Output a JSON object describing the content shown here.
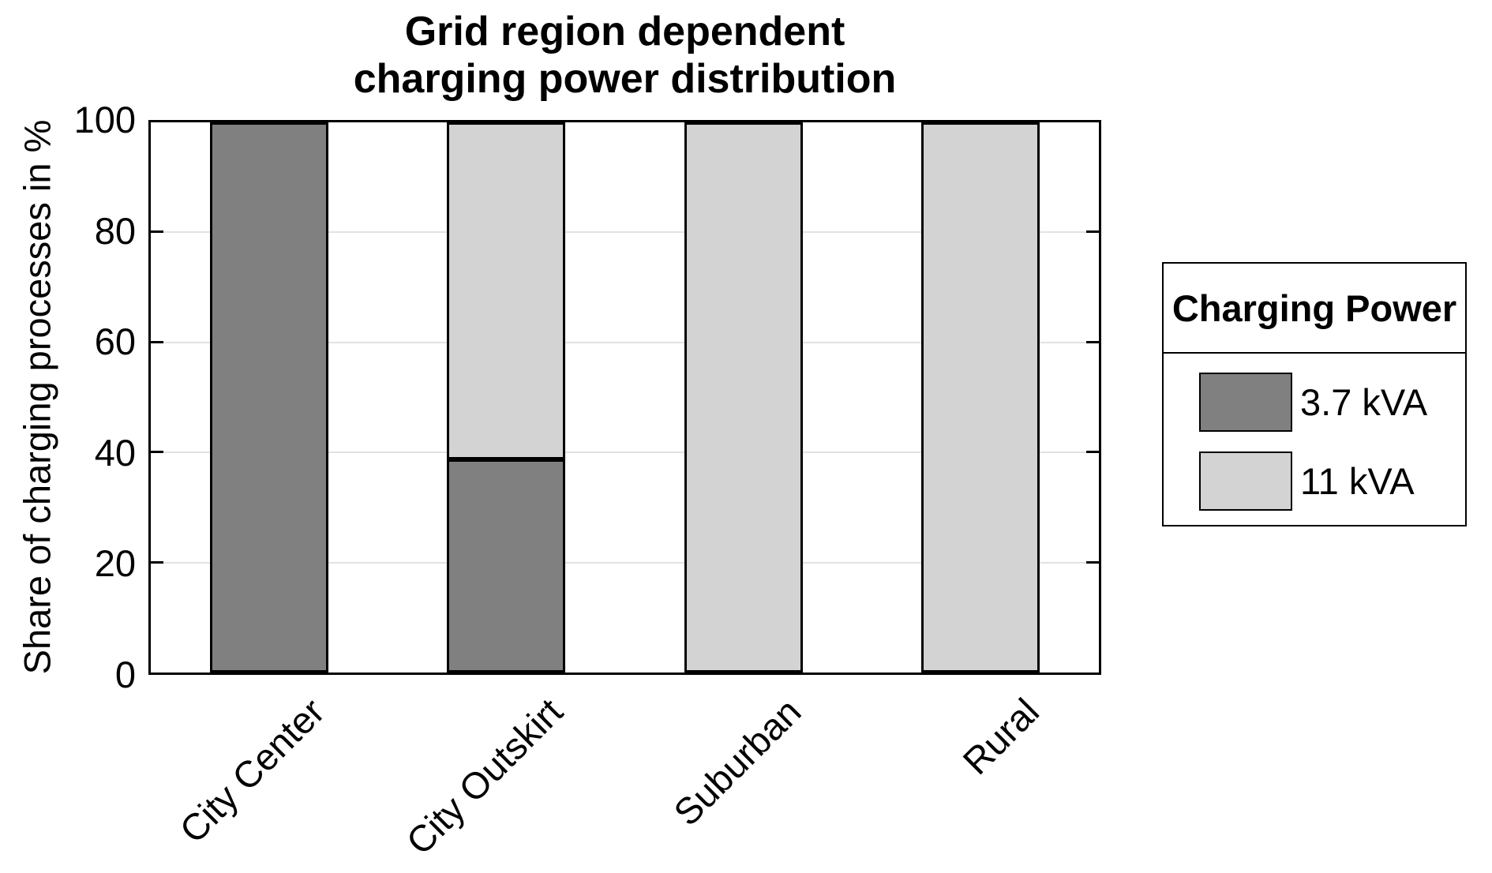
{
  "figure": {
    "background": "#ffffff",
    "frame_color": "#000000",
    "grid_color": "#e2e2e2",
    "text_color": "#000000"
  },
  "chart_data": {
    "type": "bar",
    "stacked": true,
    "title": "Grid region dependent charging power distribution",
    "title_lines": [
      "Grid region dependent",
      "charging power distribution"
    ],
    "ylabel": "Share of charging processes in %",
    "xlabel": "",
    "categories": [
      "City Center",
      "City Outskirt",
      "Suburban",
      "Rural"
    ],
    "series": [
      {
        "name": "3.7 kVA",
        "color": "#808080",
        "values": [
          100,
          38.7,
          0,
          0
        ]
      },
      {
        "name": "11 kVA",
        "color": "#d3d3d3",
        "values": [
          0,
          61.3,
          100,
          100
        ]
      }
    ],
    "ylim": [
      0,
      100
    ],
    "yticks": [
      0,
      20,
      40,
      60,
      80,
      100
    ],
    "grid": "horizontal",
    "gridline_values": [
      20,
      40,
      60,
      80
    ],
    "legend": {
      "title": "Charging Power",
      "position": "right-outside"
    }
  }
}
